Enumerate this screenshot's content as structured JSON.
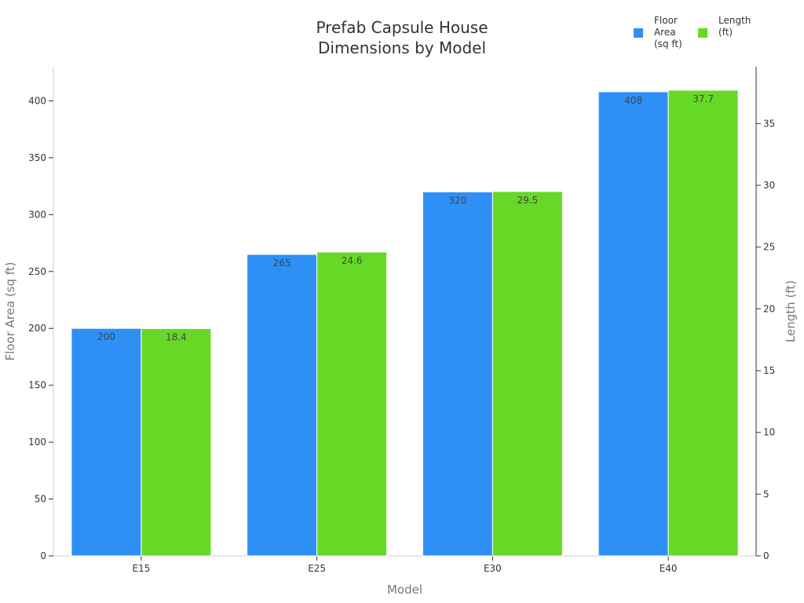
{
  "chart_data": {
    "type": "bar",
    "title": [
      "Prefab Capsule House",
      "Dimensions by Model"
    ],
    "xlabel": "Model",
    "categories": [
      "E15",
      "E25",
      "E30",
      "E40"
    ],
    "grid": false,
    "legend_placement": "top-right",
    "y_left": {
      "label": "Floor Area (sq ft)",
      "ylim": [
        0,
        430
      ],
      "ticks": [
        0,
        50,
        100,
        150,
        200,
        250,
        300,
        350,
        400
      ]
    },
    "y_right": {
      "label": "Length (ft)",
      "ylim": [
        0,
        39.6
      ],
      "ticks": [
        0,
        5,
        10,
        15,
        20,
        25,
        30,
        35
      ]
    },
    "series": [
      {
        "name": [
          "Floor",
          "Area",
          "(sq ft)"
        ],
        "axis": "left",
        "color": "#2e90f5",
        "values": [
          200,
          265,
          320,
          408
        ],
        "labels": [
          "200",
          "265",
          "320",
          "408"
        ]
      },
      {
        "name": [
          "Length",
          "(ft)"
        ],
        "axis": "right",
        "color": "#66d926",
        "values": [
          18.4,
          24.6,
          29.5,
          37.7
        ],
        "labels": [
          "18.4",
          "24.6",
          "29.5",
          "37.7"
        ]
      }
    ]
  }
}
